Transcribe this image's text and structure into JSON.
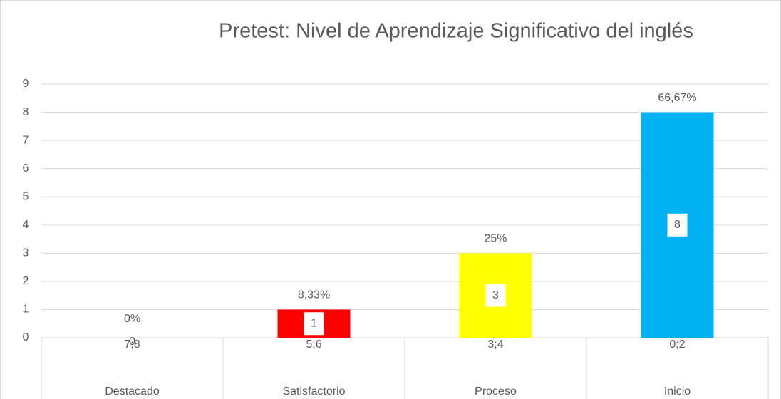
{
  "chart_data": {
    "type": "bar",
    "title": "Pretest: Nivel de Aprendizaje Significativo del inglés",
    "categories": [
      "7;8",
      "5;6",
      "3;4",
      "0;2"
    ],
    "category_groups": [
      "Destacado",
      "Satisfactorio",
      "Proceso",
      "Inicio"
    ],
    "values": [
      0,
      1,
      3,
      8
    ],
    "colors": [
      null,
      "#ff0000",
      "#ffff00",
      "#00b0f0"
    ],
    "percent_values": [
      0,
      8.33,
      25,
      66.67
    ],
    "percent_labels": [
      "0%",
      "8,33%",
      "25%",
      "66,67%"
    ],
    "ylim": [
      0,
      9
    ],
    "yticks": [
      0,
      1,
      2,
      3,
      4,
      5,
      6,
      7,
      8,
      9
    ],
    "grid": true
  }
}
